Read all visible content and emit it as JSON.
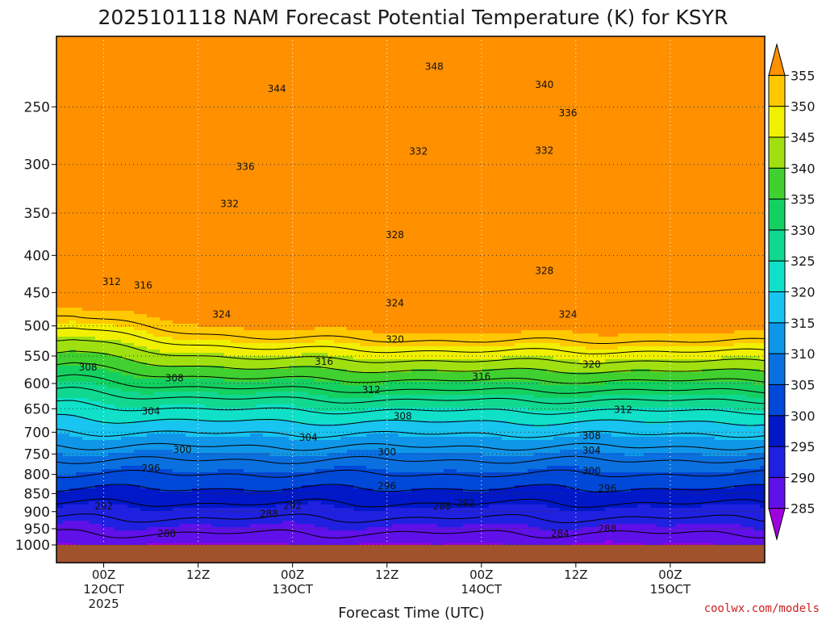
{
  "chart_data": {
    "type": "heatmap",
    "title": "2025101118 NAM Forecast Potential Temperature (K) for KSYR",
    "xlabel": "Forecast Time (UTC)",
    "ylabel": "",
    "yaxis": {
      "log": true,
      "ylim": [
        1000,
        200
      ],
      "ticks": [
        250,
        300,
        350,
        400,
        450,
        500,
        550,
        600,
        650,
        700,
        750,
        800,
        850,
        900,
        950,
        1000
      ]
    },
    "xaxis": {
      "xlim_hours": [
        -6,
        84
      ],
      "ticks": [
        {
          "hour": 0,
          "lines": [
            "00Z",
            "12OCT",
            "2025"
          ]
        },
        {
          "hour": 12,
          "lines": [
            "12Z"
          ]
        },
        {
          "hour": 24,
          "lines": [
            "00Z",
            "13OCT"
          ]
        },
        {
          "hour": 36,
          "lines": [
            "12Z"
          ]
        },
        {
          "hour": 48,
          "lines": [
            "00Z",
            "14OCT"
          ]
        },
        {
          "hour": 60,
          "lines": [
            "12Z"
          ]
        },
        {
          "hour": 72,
          "lines": [
            "00Z",
            "15OCT"
          ]
        }
      ]
    },
    "colorbar": {
      "levels": [
        285,
        290,
        295,
        300,
        305,
        310,
        315,
        320,
        325,
        330,
        335,
        340,
        345,
        350,
        355
      ],
      "colors": [
        "#a000e0",
        "#6010e8",
        "#2020e0",
        "#0018c8",
        "#0048d8",
        "#0a70e0",
        "#1096e8",
        "#18c4f0",
        "#10e0c8",
        "#10d890",
        "#14d060",
        "#40d030",
        "#a0e010",
        "#f0f000",
        "#ffc800",
        "#ff9000"
      ]
    },
    "ground": {
      "pressure": 1000,
      "color": "#a0522d"
    },
    "grid": true,
    "contour_interval": 4,
    "contour_labels": [
      {
        "hour": 0,
        "p": 885,
        "text": "292"
      },
      {
        "hour": 6,
        "p": 785,
        "text": "296"
      },
      {
        "hour": 8,
        "p": 965,
        "text": "288"
      },
      {
        "hour": 10,
        "p": 740,
        "text": "300"
      },
      {
        "hour": 6,
        "p": 655,
        "text": "304"
      },
      {
        "hour": 9,
        "p": 590,
        "text": "308"
      },
      {
        "hour": -2,
        "p": 570,
        "text": "308"
      },
      {
        "hour": 1,
        "p": 435,
        "text": "312"
      },
      {
        "hour": 5,
        "p": 440,
        "text": "316"
      },
      {
        "hour": 15,
        "p": 482,
        "text": "324"
      },
      {
        "hour": 16,
        "p": 340,
        "text": "332"
      },
      {
        "hour": 18,
        "p": 302,
        "text": "336"
      },
      {
        "hour": 22,
        "p": 236,
        "text": "344"
      },
      {
        "hour": 42,
        "p": 220,
        "text": "348"
      },
      {
        "hour": 56,
        "p": 233,
        "text": "340"
      },
      {
        "hour": 59,
        "p": 255,
        "text": "336"
      },
      {
        "hour": 56,
        "p": 287,
        "text": "332"
      },
      {
        "hour": 40,
        "p": 288,
        "text": "332"
      },
      {
        "hour": 37,
        "p": 375,
        "text": "328"
      },
      {
        "hour": 56,
        "p": 420,
        "text": "328"
      },
      {
        "hour": 37,
        "p": 465,
        "text": "324"
      },
      {
        "hour": 59,
        "p": 482,
        "text": "324"
      },
      {
        "hour": 37,
        "p": 522,
        "text": "320"
      },
      {
        "hour": 62,
        "p": 565,
        "text": "320"
      },
      {
        "hour": 28,
        "p": 560,
        "text": "316"
      },
      {
        "hour": 48,
        "p": 587,
        "text": "316"
      },
      {
        "hour": 34,
        "p": 612,
        "text": "312"
      },
      {
        "hour": 66,
        "p": 652,
        "text": "312"
      },
      {
        "hour": 38,
        "p": 665,
        "text": "308"
      },
      {
        "hour": 62,
        "p": 708,
        "text": "308"
      },
      {
        "hour": 26,
        "p": 712,
        "text": "304"
      },
      {
        "hour": 62,
        "p": 742,
        "text": "304"
      },
      {
        "hour": 36,
        "p": 745,
        "text": "300"
      },
      {
        "hour": 62,
        "p": 792,
        "text": "300"
      },
      {
        "hour": 36,
        "p": 830,
        "text": "296"
      },
      {
        "hour": 64,
        "p": 836,
        "text": "296"
      },
      {
        "hour": 24,
        "p": 883,
        "text": "292"
      },
      {
        "hour": 46,
        "p": 877,
        "text": "292"
      },
      {
        "hour": 21,
        "p": 906,
        "text": "288"
      },
      {
        "hour": 43,
        "p": 885,
        "text": "288"
      },
      {
        "hour": 58,
        "p": 965,
        "text": "284"
      },
      {
        "hour": 64,
        "p": 950,
        "text": "288"
      }
    ]
  },
  "credit": "coolwx.com/models"
}
